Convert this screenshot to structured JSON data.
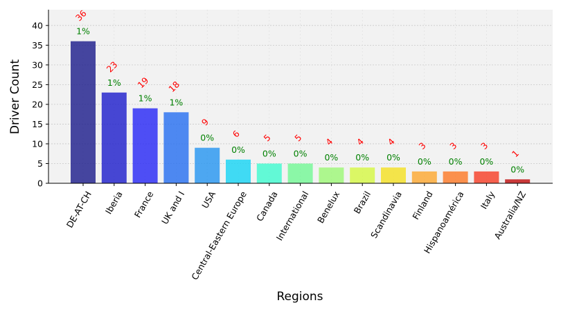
{
  "chart_data": {
    "type": "bar",
    "title": "",
    "xlabel": "Regions",
    "ylabel": "Driver Count",
    "ylim": [
      0,
      44
    ],
    "yticks": [
      0,
      5,
      10,
      15,
      20,
      25,
      30,
      35,
      40
    ],
    "grid": true,
    "legend": "none",
    "plot_background": "#f2f2f2",
    "count_label_color": "#ff0000",
    "percent_label_color": "#008000",
    "categories": [
      "DE-AT-CH",
      "Iberia",
      "France",
      "UK and I",
      "USA",
      "Central-Eastern Europe",
      "Canada",
      "International",
      "Benelux",
      "Brazil",
      "Scandinavia",
      "Finland",
      "Hispanoamérica",
      "Italy",
      "Australia/NZ"
    ],
    "values": [
      36,
      23,
      19,
      18,
      9,
      6,
      5,
      5,
      4,
      4,
      4,
      3,
      3,
      3,
      1
    ],
    "percent_labels": [
      "1%",
      "1%",
      "1%",
      "1%",
      "0%",
      "0%",
      "0%",
      "0%",
      "0%",
      "0%",
      "0%",
      "0%",
      "0%",
      "0%",
      "0%"
    ],
    "bar_colors": [
      "#1f1f8c",
      "#2020cc",
      "#2a2af5",
      "#2870f0",
      "#2896f0",
      "#18d4f4",
      "#42fad0",
      "#74f896",
      "#9ef878",
      "#d6f846",
      "#f4e024",
      "#fca832",
      "#fc7a28",
      "#f64028",
      "#c01010"
    ]
  }
}
